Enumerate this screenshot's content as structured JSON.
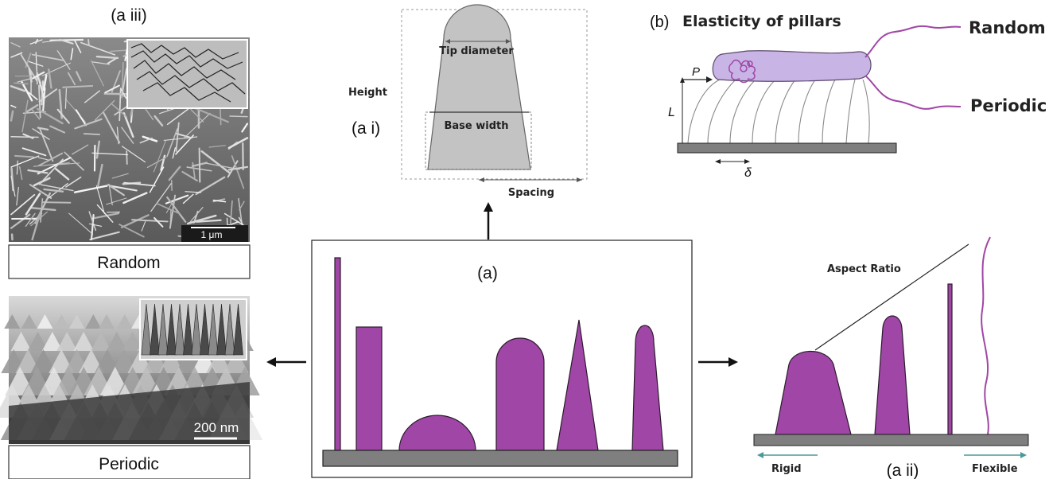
{
  "panel_a_iii": {
    "label": "(a iii)",
    "scale_bar": "1 μm",
    "caption": "Random"
  },
  "panel_periodic": {
    "scale_bar": "200 nm",
    "caption": "Periodic"
  },
  "panel_a_i": {
    "label": "(a i)",
    "height_label": "Height",
    "tip_label": "Tip diameter",
    "base_label": "Base width",
    "spacing_label": "Spacing"
  },
  "panel_b": {
    "label": "(b)",
    "title": "Elasticity of pillars",
    "p_label": "P",
    "l_label": "L",
    "delta_label": "δ",
    "random_label": "Random",
    "periodic_label": "Periodic"
  },
  "panel_a": {
    "label": "(a)"
  },
  "panel_a_ii": {
    "label": "(a ii)",
    "aspect_ratio_label": "Aspect Ratio",
    "rigid_label": "Rigid",
    "flexible_label": "Flexible"
  },
  "colors": {
    "pillar": "#a046a6",
    "pillar_stroke": "#2b1a2c",
    "pillar_light": "#c9b4e6",
    "base_gray": "#7f7f7f",
    "sketch_gray": "#bfbfbf",
    "sem_dark": "#3c3c3c"
  }
}
